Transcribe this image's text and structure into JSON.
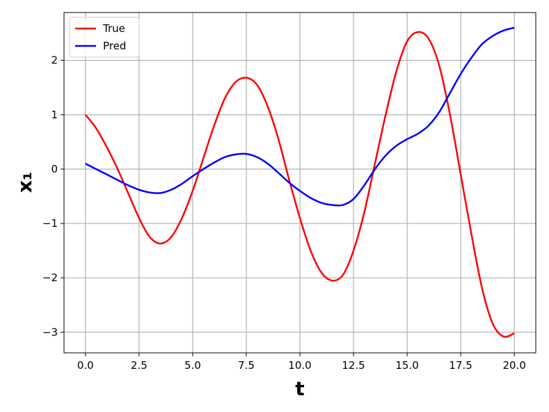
{
  "chart_data": {
    "type": "line",
    "x_label": "t",
    "y_label": "x₁",
    "x": [
      0,
      0.5,
      1,
      1.5,
      2,
      2.5,
      3,
      3.5,
      4,
      4.5,
      5,
      5.5,
      6,
      6.5,
      7,
      7.5,
      8,
      8.5,
      9,
      9.5,
      10,
      10.5,
      11,
      11.5,
      12,
      12.5,
      13,
      13.5,
      14,
      14.5,
      15,
      15.5,
      16,
      16.5,
      17,
      17.5,
      18,
      18.5,
      19,
      19.5,
      20
    ],
    "series": [
      {
        "name": "True",
        "color": "#ff0000",
        "values": [
          1.0,
          0.75,
          0.4,
          0.0,
          -0.45,
          -0.9,
          -1.25,
          -1.37,
          -1.25,
          -0.9,
          -0.4,
          0.2,
          0.8,
          1.3,
          1.6,
          1.68,
          1.55,
          1.15,
          0.55,
          -0.2,
          -0.9,
          -1.5,
          -1.9,
          -2.05,
          -1.95,
          -1.5,
          -0.8,
          0.1,
          1.0,
          1.8,
          2.35,
          2.52,
          2.4,
          1.9,
          1.0,
          -0.1,
          -1.2,
          -2.2,
          -2.85,
          -3.08,
          -3.02
        ]
      },
      {
        "name": "Pred",
        "color": "#0000ff",
        "values": [
          0.1,
          0.0,
          -0.1,
          -0.2,
          -0.3,
          -0.38,
          -0.43,
          -0.44,
          -0.38,
          -0.27,
          -0.13,
          0.0,
          0.12,
          0.22,
          0.27,
          0.28,
          0.22,
          0.1,
          -0.07,
          -0.25,
          -0.4,
          -0.53,
          -0.62,
          -0.66,
          -0.66,
          -0.55,
          -0.3,
          0.0,
          0.25,
          0.43,
          0.55,
          0.65,
          0.8,
          1.05,
          1.4,
          1.75,
          2.05,
          2.3,
          2.45,
          2.55,
          2.6
        ]
      }
    ],
    "xlim": [
      -1,
      21
    ],
    "ylim": [
      -3.38,
      2.88
    ],
    "xticks": [
      {
        "value": 0,
        "label": "0.0"
      },
      2.5,
      {
        "value": 5,
        "label": "5.0"
      },
      7.5,
      {
        "value": 10,
        "label": "10.0"
      },
      12.5,
      {
        "value": 15,
        "label": "15.0"
      },
      17.5,
      {
        "value": 20,
        "label": "20.0"
      }
    ],
    "yticks": [
      {
        "value": -3,
        "label": "−3"
      },
      {
        "value": -2,
        "label": "−2"
      },
      {
        "value": -1,
        "label": "−1"
      },
      0,
      1,
      2
    ],
    "grid": true,
    "legend": "upper left"
  }
}
